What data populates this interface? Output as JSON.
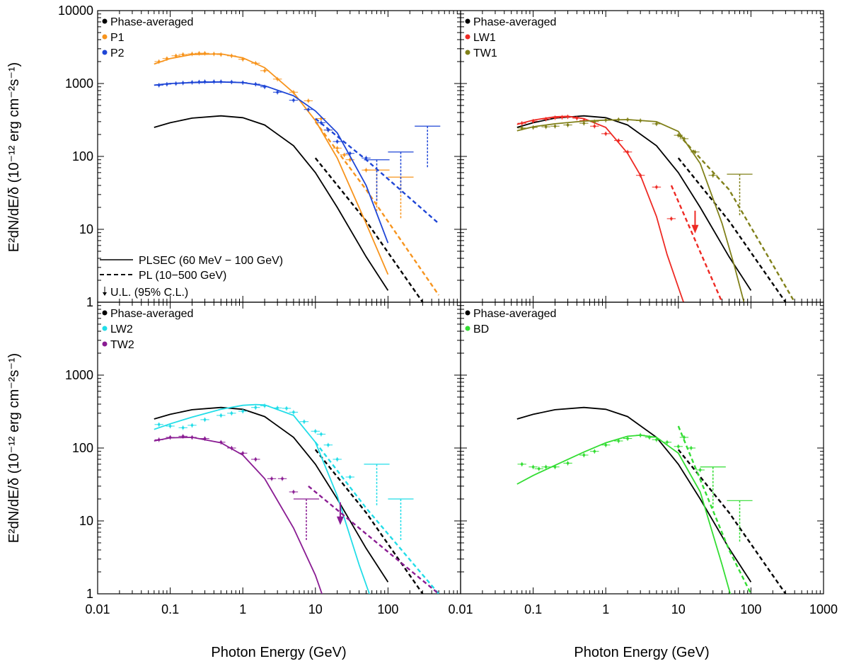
{
  "chart_data": {
    "type": "line",
    "x_axis_label": "Photon Energy (GeV)",
    "y_axis_label": "E²dN/dE/δ (10⁻¹² erg cm⁻²s⁻¹)",
    "x_range": [
      0.01,
      1000
    ],
    "y_range": [
      1,
      10000
    ],
    "x_tick_labels": [
      "0.01",
      "0.1",
      "1",
      "10",
      "100",
      "1000"
    ],
    "y_tick_labels": [
      "1",
      "10",
      "100",
      "1000",
      "10000"
    ],
    "model_legend": [
      {
        "label": "PLSEC (60 MeV − 100 GeV)",
        "style": "solid"
      },
      {
        "label": "PL (10−500 GeV)",
        "style": "dashed"
      },
      {
        "label": "U.L. (95% C.L.)",
        "style": "arrow"
      }
    ],
    "panels": [
      {
        "id": "top-left",
        "legend": [
          {
            "label": "Phase-averaged",
            "color": "#000000"
          },
          {
            "label": "P1",
            "color": "#f7941d"
          },
          {
            "label": "P2",
            "color": "#1f46d6"
          }
        ],
        "series": [
          {
            "name": "Phase-averaged",
            "color": "#000000",
            "fit": {
              "x": [
                0.06,
                0.1,
                0.2,
                0.5,
                1,
                2,
                5,
                10,
                20,
                50,
                100
              ],
              "y": [
                250,
                290,
                335,
                360,
                340,
                270,
                140,
                60,
                20,
                4.2,
                1.45
              ]
            },
            "pl": {
              "x": [
                10,
                50,
                300
              ],
              "y": [
                95,
                13,
                1
              ]
            }
          },
          {
            "name": "P1",
            "color": "#f7941d",
            "fit": {
              "x": [
                0.06,
                0.1,
                0.2,
                0.5,
                1,
                2,
                5,
                10,
                20,
                50,
                100
              ],
              "y": [
                1850,
                2200,
                2500,
                2550,
                2250,
                1650,
                750,
                310,
                95,
                12,
                2.4
              ]
            },
            "pl": {
              "x": [
                10,
                50,
                500
              ],
              "y": [
                300,
                35,
                1.25
              ]
            },
            "points": {
              "x": [
                0.07,
                0.09,
                0.12,
                0.15,
                0.2,
                0.25,
                0.3,
                0.4,
                0.5,
                0.7,
                1,
                1.5,
                2,
                3,
                5,
                8,
                12,
                15,
                20,
                25,
                30,
                50
              ],
              "y": [
                2000,
                2200,
                2400,
                2500,
                2550,
                2600,
                2600,
                2550,
                2500,
                2400,
                2150,
                1900,
                1500,
                1150,
                760,
                580,
                330,
                230,
                130,
                105,
                90,
                65
              ]
            },
            "ul": [
              {
                "x": 70,
                "y": 65
              },
              {
                "x": 150,
                "y": 52
              }
            ]
          },
          {
            "name": "P2",
            "color": "#1f46d6",
            "fit": {
              "x": [
                0.06,
                0.1,
                0.2,
                0.5,
                1,
                2,
                5,
                10,
                20,
                50,
                100
              ],
              "y": [
                950,
                1000,
                1030,
                1050,
                1030,
                930,
                680,
                420,
                210,
                40,
                6.5
              ]
            },
            "pl": {
              "x": [
                10,
                50,
                500
              ],
              "y": [
                330,
                90,
                12
              ]
            },
            "points": {
              "x": [
                0.07,
                0.09,
                0.12,
                0.15,
                0.2,
                0.25,
                0.3,
                0.4,
                0.5,
                0.7,
                1,
                1.5,
                2,
                3,
                5,
                8,
                12,
                15,
                20,
                30,
                50
              ],
              "y": [
                950,
                980,
                1000,
                1020,
                1040,
                1050,
                1060,
                1060,
                1060,
                1050,
                1030,
                980,
                900,
                760,
                590,
                440,
                290,
                230,
                160,
                110,
                95
              ]
            },
            "ul": [
              {
                "x": 70,
                "y": 90
              },
              {
                "x": 150,
                "y": 115
              },
              {
                "x": 350,
                "y": 260
              }
            ]
          }
        ]
      },
      {
        "id": "top-right",
        "legend": [
          {
            "label": "Phase-averaged",
            "color": "#000000"
          },
          {
            "label": "LW1",
            "color": "#ee2a24"
          },
          {
            "label": "TW1",
            "color": "#808019"
          }
        ],
        "series": [
          {
            "name": "Phase-averaged",
            "color": "#000000",
            "fit": {
              "x": [
                0.06,
                0.1,
                0.2,
                0.5,
                1,
                2,
                5,
                10,
                20,
                50,
                100
              ],
              "y": [
                250,
                290,
                335,
                360,
                340,
                270,
                140,
                60,
                20,
                4.2,
                1.45
              ]
            },
            "pl": {
              "x": [
                10,
                50,
                300
              ],
              "y": [
                95,
                13,
                1
              ]
            }
          },
          {
            "name": "LW1",
            "color": "#ee2a24",
            "fit": {
              "x": [
                0.06,
                0.1,
                0.2,
                0.3,
                0.5,
                1,
                2,
                3,
                5,
                7,
                10,
                15,
                20
              ],
              "y": [
                275,
                315,
                350,
                355,
                330,
                250,
                110,
                55,
                15,
                4.5,
                1.6,
                0.5,
                0.15
              ]
            },
            "pl": {
              "x": [
                8,
                40
              ],
              "y": [
                40,
                1
              ]
            },
            "points": {
              "x": [
                0.07,
                0.1,
                0.15,
                0.2,
                0.25,
                0.3,
                0.4,
                0.5,
                0.7,
                1,
                1.5,
                2,
                3,
                5,
                8
              ],
              "y": [
                285,
                305,
                325,
                340,
                345,
                350,
                335,
                310,
                260,
                205,
                165,
                115,
                55,
                38,
                14
              ]
            },
            "ul": [
              {
                "x": 17,
                "y": 18
              }
            ]
          },
          {
            "name": "TW1",
            "color": "#808019",
            "fit": {
              "x": [
                0.06,
                0.1,
                0.2,
                0.5,
                1,
                2,
                5,
                10,
                20,
                40,
                60,
                80
              ],
              "y": [
                225,
                255,
                280,
                305,
                315,
                320,
                300,
                220,
                80,
                12,
                3,
                1
              ]
            },
            "pl": {
              "x": [
                10,
                50,
                400
              ],
              "y": [
                200,
                35,
                1
              ]
            },
            "points": {
              "x": [
                0.07,
                0.1,
                0.15,
                0.2,
                0.3,
                0.5,
                0.7,
                1,
                1.5,
                2,
                3,
                5,
                10,
                12,
                17,
                30
              ],
              "y": [
                245,
                250,
                255,
                260,
                270,
                285,
                300,
                315,
                320,
                320,
                310,
                280,
                195,
                175,
                115,
                55
              ]
            },
            "ul": [
              {
                "x": 70,
                "y": 57
              }
            ]
          }
        ]
      },
      {
        "id": "bottom-left",
        "legend": [
          {
            "label": "Phase-averaged",
            "color": "#000000"
          },
          {
            "label": "LW2",
            "color": "#22dde8"
          },
          {
            "label": "TW2",
            "color": "#8a1c93"
          }
        ],
        "series": [
          {
            "name": "Phase-averaged",
            "color": "#000000",
            "fit": {
              "x": [
                0.06,
                0.1,
                0.2,
                0.5,
                1,
                2,
                5,
                10,
                20,
                50,
                100
              ],
              "y": [
                250,
                290,
                335,
                360,
                340,
                270,
                140,
                60,
                20,
                4.2,
                1.45
              ]
            },
            "pl": {
              "x": [
                10,
                50,
                300
              ],
              "y": [
                95,
                13,
                1
              ]
            }
          },
          {
            "name": "LW2",
            "color": "#22dde8",
            "fit": {
              "x": [
                0.06,
                0.1,
                0.2,
                0.5,
                1,
                1.5,
                2,
                5,
                10,
                20,
                40,
                60
              ],
              "y": [
                180,
                215,
                265,
                340,
                385,
                395,
                390,
                280,
                120,
                22,
                2.5,
                0.8
              ]
            },
            "pl": {
              "x": [
                10,
                50,
                500
              ],
              "y": [
                120,
                15,
                1
              ]
            },
            "points": {
              "x": [
                0.07,
                0.1,
                0.15,
                0.2,
                0.3,
                0.5,
                0.7,
                1,
                1.5,
                2,
                3,
                4,
                5,
                7,
                10,
                12,
                15,
                20,
                30
              ],
              "y": [
                210,
                200,
                190,
                205,
                245,
                280,
                300,
                320,
                360,
                380,
                355,
                350,
                310,
                230,
                170,
                155,
                110,
                70,
                40
              ]
            },
            "ul": [
              {
                "x": 70,
                "y": 60
              },
              {
                "x": 150,
                "y": 20
              }
            ]
          },
          {
            "name": "TW2",
            "color": "#8a1c93",
            "fit": {
              "x": [
                0.06,
                0.1,
                0.2,
                0.5,
                1,
                2,
                5,
                10,
                20,
                25
              ],
              "y": [
                125,
                138,
                140,
                118,
                80,
                38,
                8,
                1.8,
                0.25,
                0.1
              ]
            },
            "pl": {
              "x": [
                8,
                500
              ],
              "y": [
                30,
                1
              ]
            },
            "points": {
              "x": [
                0.07,
                0.1,
                0.15,
                0.2,
                0.3,
                0.5,
                0.7,
                1,
                1.5,
                2.5,
                3.5,
                5
              ],
              "y": [
                130,
                140,
                145,
                140,
                135,
                120,
                100,
                85,
                70,
                38,
                38,
                25
              ]
            },
            "ul": [
              {
                "x": 7.5,
                "y": 20
              },
              {
                "x": 22,
                "y": 18
              }
            ]
          }
        ]
      },
      {
        "id": "bottom-right",
        "legend": [
          {
            "label": "Phase-averaged",
            "color": "#000000"
          },
          {
            "label": "BD",
            "color": "#33dd33"
          }
        ],
        "series": [
          {
            "name": "Phase-averaged",
            "color": "#000000",
            "fit": {
              "x": [
                0.06,
                0.1,
                0.2,
                0.5,
                1,
                2,
                5,
                10,
                20,
                50,
                100
              ],
              "y": [
                250,
                290,
                335,
                360,
                340,
                270,
                140,
                60,
                20,
                4.2,
                1.45
              ]
            },
            "pl": {
              "x": [
                10,
                50,
                300
              ],
              "y": [
                95,
                13,
                1
              ]
            }
          },
          {
            "name": "BD",
            "color": "#33dd33",
            "fit": {
              "x": [
                0.06,
                0.1,
                0.2,
                0.5,
                1,
                2,
                3,
                5,
                10,
                20,
                40,
                60
              ],
              "y": [
                32,
                42,
                58,
                88,
                118,
                145,
                150,
                140,
                85,
                25,
                2.5,
                0.6
              ]
            },
            "pl": {
              "x": [
                10,
                50,
                100
              ],
              "y": [
                200,
                4,
                1
              ]
            },
            "points": {
              "x": [
                0.07,
                0.1,
                0.12,
                0.15,
                0.2,
                0.3,
                0.5,
                0.7,
                1,
                1.5,
                2,
                3,
                4,
                5,
                7,
                10,
                12,
                15,
                20
              ],
              "y": [
                60,
                55,
                52,
                55,
                55,
                62,
                80,
                90,
                110,
                125,
                135,
                150,
                140,
                130,
                120,
                105,
                140,
                100,
                50
              ]
            },
            "ul": [
              {
                "x": 30,
                "y": 55
              },
              {
                "x": 70,
                "y": 19
              }
            ]
          }
        ]
      }
    ]
  }
}
